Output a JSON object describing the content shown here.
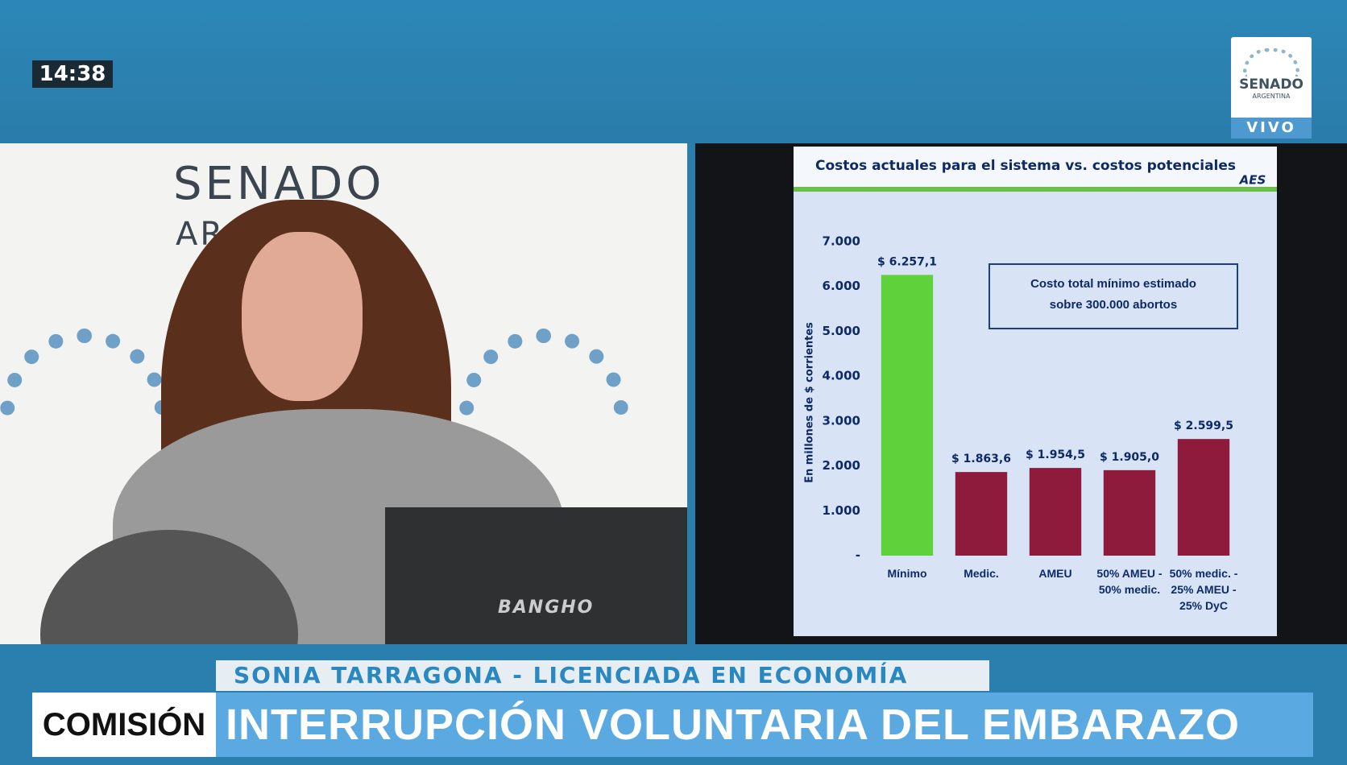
{
  "broadcast": {
    "time": "14:38",
    "logo_title": "SENADO",
    "logo_subtitle": "ARGENTINA",
    "live": "VIVO",
    "backdrop_title": "SENADO",
    "backdrop_subtitle": "ARGENTINA",
    "laptop_brand": "BANGHO",
    "speaker": "SONIA TARRAGONA - LICENCIADA EN ECONOMÍA",
    "section": "COMISIÓN",
    "headline": "INTERRUPCIÓN VOLUNTARIA DEL EMBARAZO"
  },
  "chart_data": {
    "type": "bar",
    "title": "Costos actuales para el sistema vs. costos potenciales",
    "logo": "AES",
    "ylabel": "En millones de $ corrientes",
    "annotation": "Costo total mínimo estimado sobre 300.000 abortos",
    "categories": [
      "Mínimo",
      "Medic.",
      "AMEU",
      "50% AMEU - 50% medic.",
      "50% medic. - 25% AMEU - 25% DyC"
    ],
    "values": [
      6257.1,
      1863.6,
      1954.5,
      1905.0,
      2599.5
    ],
    "value_labels": [
      "$ 6.257,1",
      "$ 1.863,6",
      "$ 1.954,5",
      "$ 1.905,0",
      "$ 2.599,5"
    ],
    "colors": [
      "#5fd13a",
      "#8e1a3c",
      "#8e1a3c",
      "#8e1a3c",
      "#8e1a3c"
    ],
    "ylim": [
      0,
      7000
    ],
    "yticks": [
      {
        "value": 0,
        "label": "-"
      },
      {
        "value": 1000,
        "label": "1.000"
      },
      {
        "value": 2000,
        "label": "2.000"
      },
      {
        "value": 3000,
        "label": "3.000"
      },
      {
        "value": 4000,
        "label": "4.000"
      },
      {
        "value": 5000,
        "label": "5.000"
      },
      {
        "value": 6000,
        "label": "6.000"
      },
      {
        "value": 7000,
        "label": "7.000"
      }
    ]
  }
}
